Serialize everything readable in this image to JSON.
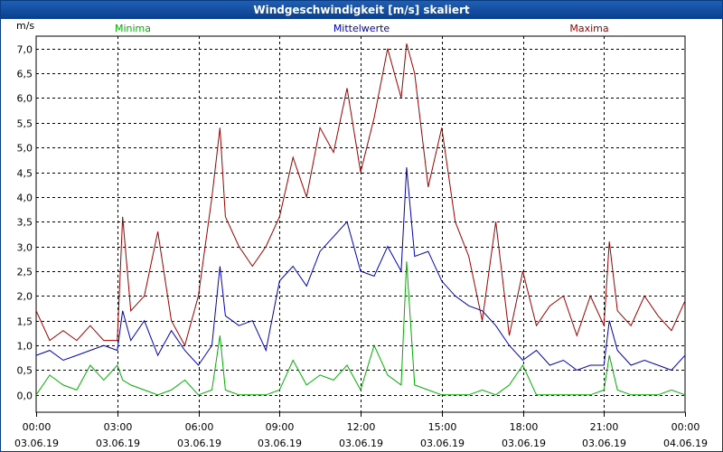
{
  "window": {
    "title": "Windgeschwindigkeit [m/s] skaliert"
  },
  "chart_data": {
    "type": "line",
    "title": "Windgeschwindigkeit [m/s] skaliert",
    "ylabel": "m/s",
    "ylim": [
      -0.35,
      7.25
    ],
    "xlim": [
      0,
      24
    ],
    "yticks": [
      0.0,
      0.5,
      1.0,
      1.5,
      2.0,
      2.5,
      3.0,
      3.5,
      4.0,
      4.5,
      5.0,
      5.5,
      6.0,
      6.5,
      7.0
    ],
    "ytick_labels": [
      "0,0",
      "0,5",
      "1,0",
      "1,5",
      "2,0",
      "2,5",
      "3,0",
      "3,5",
      "4,0",
      "4,5",
      "5,0",
      "5,5",
      "6,0",
      "6,5",
      "7,0"
    ],
    "xticks": [
      0,
      3,
      6,
      9,
      12,
      15,
      18,
      21,
      24
    ],
    "xtick_time": [
      "00:00",
      "03:00",
      "06:00",
      "09:00",
      "12:00",
      "15:00",
      "18:00",
      "21:00",
      "00:00"
    ],
    "xtick_date": [
      "03.06.19",
      "03.06.19",
      "03.06.19",
      "03.06.19",
      "03.06.19",
      "03.06.19",
      "03.06.19",
      "03.06.19",
      "04.06.19"
    ],
    "grid": true,
    "legend_position": "top",
    "colors": {
      "minima": "#00b000",
      "mittelwerte": "#0000c0",
      "maxima": "#a00000"
    },
    "series": [
      {
        "name": "Minima",
        "x": [
          0,
          0.5,
          1,
          1.5,
          2,
          2.5,
          3,
          3.2,
          3.5,
          4,
          4.5,
          5,
          5.5,
          6,
          6.5,
          6.8,
          7,
          7.5,
          8,
          8.5,
          9,
          9.5,
          10,
          10.5,
          11,
          11.5,
          12,
          12.5,
          13,
          13.5,
          13.7,
          14,
          14.5,
          15,
          15.5,
          16,
          16.5,
          17,
          17.5,
          18,
          18.5,
          19,
          19.5,
          20,
          20.5,
          21,
          21.2,
          21.5,
          22,
          22.5,
          23,
          23.5,
          24
        ],
        "values": [
          0.0,
          0.4,
          0.2,
          0.1,
          0.6,
          0.3,
          0.6,
          0.3,
          0.2,
          0.1,
          0.0,
          0.1,
          0.3,
          0.0,
          0.1,
          1.2,
          0.1,
          0.0,
          0.0,
          0.0,
          0.1,
          0.7,
          0.2,
          0.4,
          0.3,
          0.6,
          0.1,
          1.0,
          0.4,
          0.2,
          2.7,
          0.2,
          0.1,
          0.0,
          0.0,
          0.0,
          0.1,
          0.0,
          0.2,
          0.6,
          0.0,
          0.0,
          0.0,
          0.0,
          0.0,
          0.1,
          0.8,
          0.1,
          0.0,
          0.0,
          0.0,
          0.1,
          0.0
        ]
      },
      {
        "name": "Mittelwerte",
        "x": [
          0,
          0.5,
          1,
          1.5,
          2,
          2.5,
          3,
          3.2,
          3.5,
          4,
          4.5,
          5,
          5.5,
          6,
          6.5,
          6.8,
          7,
          7.5,
          8,
          8.5,
          9,
          9.5,
          10,
          10.5,
          11,
          11.5,
          12,
          12.5,
          13,
          13.5,
          13.7,
          14,
          14.5,
          15,
          15.5,
          16,
          16.5,
          17,
          17.5,
          18,
          18.5,
          19,
          19.5,
          20,
          20.5,
          21,
          21.2,
          21.5,
          22,
          22.5,
          23,
          23.5,
          24
        ],
        "values": [
          0.8,
          0.9,
          0.7,
          0.8,
          0.9,
          1.0,
          0.9,
          1.7,
          1.1,
          1.5,
          0.8,
          1.3,
          0.9,
          0.6,
          1.0,
          2.6,
          1.6,
          1.4,
          1.5,
          0.9,
          2.3,
          2.6,
          2.2,
          2.9,
          3.2,
          3.5,
          2.5,
          2.4,
          3.0,
          2.5,
          4.6,
          2.8,
          2.9,
          2.3,
          2.0,
          1.8,
          1.7,
          1.4,
          1.0,
          0.7,
          0.9,
          0.6,
          0.7,
          0.5,
          0.6,
          0.6,
          1.5,
          0.9,
          0.6,
          0.7,
          0.6,
          0.5,
          0.8
        ]
      },
      {
        "name": "Maxima",
        "x": [
          0,
          0.5,
          1,
          1.5,
          2,
          2.5,
          3,
          3.2,
          3.5,
          4,
          4.5,
          5,
          5.5,
          6,
          6.5,
          6.8,
          7,
          7.5,
          8,
          8.5,
          9,
          9.5,
          10,
          10.5,
          11,
          11.5,
          12,
          12.5,
          13,
          13.5,
          13.7,
          14,
          14.5,
          15,
          15.5,
          16,
          16.5,
          17,
          17.5,
          18,
          18.5,
          19,
          19.5,
          20,
          20.5,
          21,
          21.2,
          21.5,
          22,
          22.5,
          23,
          23.5,
          24
        ],
        "values": [
          1.7,
          1.1,
          1.3,
          1.1,
          1.4,
          1.1,
          1.1,
          3.6,
          1.7,
          2.0,
          3.3,
          1.5,
          1.0,
          2.0,
          4.0,
          5.4,
          3.6,
          3.0,
          2.6,
          3.0,
          3.6,
          4.8,
          4.0,
          5.4,
          4.9,
          6.2,
          4.5,
          5.6,
          7.0,
          6.0,
          7.1,
          6.5,
          4.2,
          5.4,
          3.5,
          2.8,
          1.5,
          3.5,
          1.2,
          2.5,
          1.4,
          1.8,
          2.0,
          1.2,
          2.0,
          1.4,
          3.1,
          1.7,
          1.4,
          2.0,
          1.6,
          1.3,
          1.9
        ]
      }
    ]
  }
}
